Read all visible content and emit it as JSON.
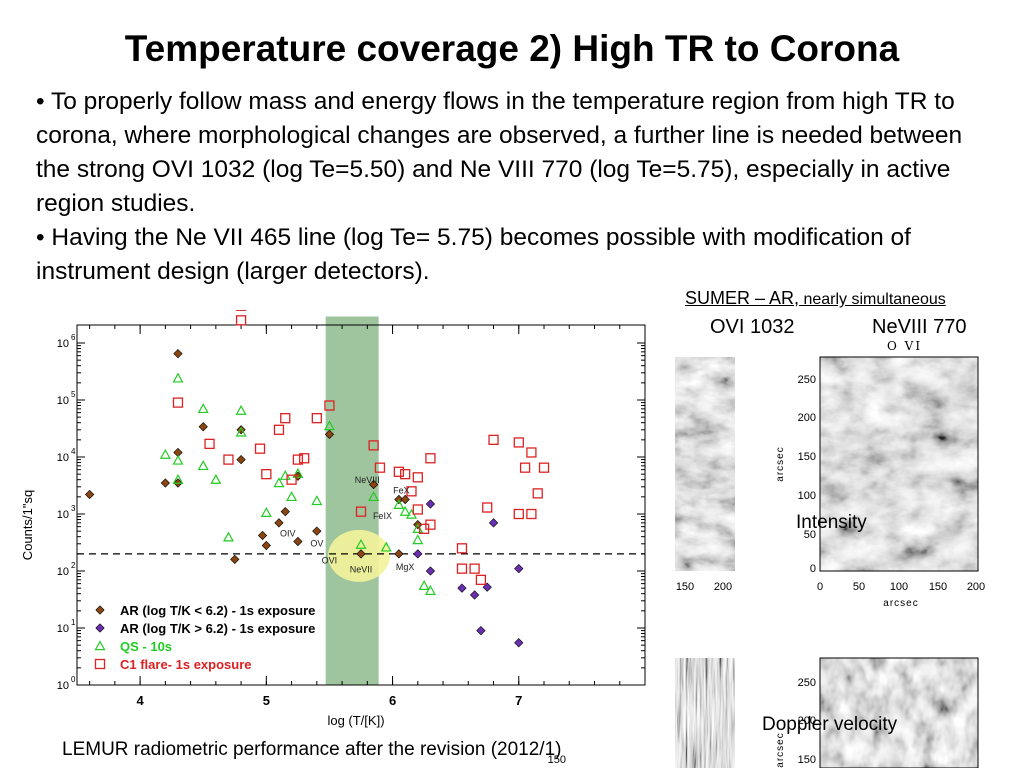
{
  "slide": {
    "title": "Temperature coverage 2) High TR to Corona",
    "bullets": [
      "• To properly follow mass and energy flows in the temperature region from high TR to corona, where morphological changes are observed, a further line is needed between the strong OVI 1032 (log Te=5.50) and Ne VIII 770 (log Te=5.75), especially in active region studies.",
      "• Having the Ne VII 465 line (log Te= 5.75) becomes possible with modification of instrument design (larger detectors)."
    ],
    "footer": "LEMUR radiometric performance after the revision (2012/1)"
  },
  "sumer": {
    "caption_main": "SUMER – AR,",
    "caption_small": " nearly simultaneous",
    "col1": "OVI 1032",
    "col2": "NeVIII 770",
    "image_title": "O VI",
    "intensity_label": "Intensity",
    "doppler_label": "Doppler velocity",
    "yaxis_label": "arcsec",
    "xaxis_label": "arcsec",
    "top_right_yticks": [
      "250",
      "200",
      "150",
      "100",
      "50",
      "0"
    ],
    "top_right_xticks": [
      "0",
      "50",
      "100",
      "150",
      "200"
    ],
    "top_left_xticks": [
      "150",
      "200"
    ],
    "bottom_right_yticks": [
      "250",
      "200",
      "150"
    ],
    "bottom_left_ytick": "150"
  },
  "chart_data": {
    "type": "scatter",
    "xlabel": "log (T/[K])",
    "ylabel": "Counts/1\"sq",
    "xlim": [
      3.5,
      8.0
    ],
    "ylim_log10": [
      0,
      6
    ],
    "xticks": [
      "4",
      "5",
      "6",
      "7"
    ],
    "yticks": [
      "10^0",
      "10^1",
      "10^2",
      "10^3",
      "10^4",
      "10^5",
      "10^6"
    ],
    "threshold": 200,
    "highlight_band": [
      5.47,
      5.89
    ],
    "highlight_marker": {
      "x": 5.75,
      "y": 200
    },
    "legend": [
      {
        "label": "AR (log T/K < 6.2) - 1s exposure",
        "marker": "diamond",
        "color": "#8B4513"
      },
      {
        "label": "AR (log T/K > 6.2) - 1s exposure",
        "marker": "diamond",
        "color": "#6a2fb0"
      },
      {
        "label": "QS - 10s",
        "marker": "triangle",
        "color": "#22cc22"
      },
      {
        "label": "C1 flare- 1s exposure",
        "marker": "square",
        "color": "#dd2222"
      }
    ],
    "annotations": [
      {
        "text": "OVI",
        "x": 5.5,
        "y": 135
      },
      {
        "text": "NeVIII",
        "x": 5.8,
        "y": 3500
      },
      {
        "text": "FeX",
        "x": 6.07,
        "y": 2300
      },
      {
        "text": "FeIX",
        "x": 5.92,
        "y": 820
      },
      {
        "text": "OIV",
        "x": 5.17,
        "y": 400
      },
      {
        "text": "OV",
        "x": 5.4,
        "y": 270
      },
      {
        "text": "NeVII",
        "x": 5.75,
        "y": 95
      },
      {
        "text": "MgX",
        "x": 6.1,
        "y": 105
      }
    ],
    "series": [
      {
        "name": "AR (log T/K < 6.2) - 1s exposure",
        "marker": "diamond",
        "color": "#8B4513",
        "points": [
          [
            3.6,
            2200
          ],
          [
            4.2,
            3500
          ],
          [
            4.3,
            650000
          ],
          [
            4.3,
            12000
          ],
          [
            4.3,
            3500
          ],
          [
            4.5,
            34000
          ],
          [
            4.75,
            160
          ],
          [
            4.8,
            30000
          ],
          [
            4.8,
            9000
          ],
          [
            4.97,
            420
          ],
          [
            5.0,
            280
          ],
          [
            5.1,
            700
          ],
          [
            5.15,
            1100
          ],
          [
            5.25,
            330
          ],
          [
            5.25,
            4600
          ],
          [
            5.4,
            500
          ],
          [
            5.5,
            25000
          ],
          [
            5.75,
            200
          ],
          [
            5.85,
            3300
          ],
          [
            6.05,
            1800
          ],
          [
            6.1,
            1800
          ],
          [
            6.05,
            200
          ],
          [
            6.2,
            650
          ]
        ]
      },
      {
        "name": "AR (log T/K > 6.2) - 1s exposure",
        "marker": "diamond",
        "color": "#6a2fb0",
        "points": [
          [
            6.2,
            200
          ],
          [
            6.3,
            1500
          ],
          [
            6.3,
            100
          ],
          [
            6.55,
            50
          ],
          [
            6.65,
            38
          ],
          [
            6.75,
            52
          ],
          [
            6.7,
            9
          ],
          [
            6.8,
            700
          ],
          [
            7.0,
            110
          ],
          [
            7.0,
            5.5
          ]
        ]
      },
      {
        "name": "QS - 10s",
        "marker": "triangle",
        "color": "#22cc22",
        "points": [
          [
            4.2,
            11000
          ],
          [
            4.3,
            240000
          ],
          [
            4.3,
            8700
          ],
          [
            4.3,
            4000
          ],
          [
            4.5,
            7000
          ],
          [
            4.5,
            70000
          ],
          [
            4.6,
            4000
          ],
          [
            4.7,
            390
          ],
          [
            4.8,
            27000
          ],
          [
            4.8,
            65000
          ],
          [
            5.0,
            1050
          ],
          [
            5.1,
            3500
          ],
          [
            5.15,
            4700
          ],
          [
            5.2,
            2000
          ],
          [
            5.25,
            5100
          ],
          [
            5.4,
            1700
          ],
          [
            5.5,
            35000
          ],
          [
            5.75,
            290
          ],
          [
            5.85,
            2000
          ],
          [
            5.95,
            260
          ],
          [
            6.05,
            1450
          ],
          [
            6.1,
            1100
          ],
          [
            6.15,
            980
          ],
          [
            6.2,
            350
          ],
          [
            6.2,
            550
          ],
          [
            6.25,
            55
          ],
          [
            6.3,
            45
          ]
        ]
      },
      {
        "name": "C1 flare- 1s exposure",
        "marker": "square",
        "color": "#dd2222",
        "points": [
          [
            4.5,
            7000000
          ],
          [
            4.3,
            90000
          ],
          [
            4.55,
            17000
          ],
          [
            4.8,
            4500000
          ],
          [
            4.8,
            2500000
          ],
          [
            4.7,
            9000
          ],
          [
            4.95,
            14000
          ],
          [
            5.0,
            5000
          ],
          [
            5.1,
            30000
          ],
          [
            5.15,
            48000
          ],
          [
            5.2,
            4000
          ],
          [
            5.25,
            9000
          ],
          [
            5.3,
            9500
          ],
          [
            5.4,
            48000
          ],
          [
            5.5,
            80000
          ],
          [
            5.75,
            1100
          ],
          [
            5.85,
            16000
          ],
          [
            5.9,
            6500
          ],
          [
            6.05,
            5500
          ],
          [
            6.1,
            5000
          ],
          [
            6.2,
            4400
          ],
          [
            6.15,
            2500
          ],
          [
            6.2,
            1200
          ],
          [
            6.25,
            550
          ],
          [
            6.3,
            650
          ],
          [
            6.3,
            9500
          ],
          [
            6.55,
            250
          ],
          [
            6.65,
            110
          ],
          [
            6.7,
            70
          ],
          [
            6.55,
            110
          ],
          [
            6.75,
            1300
          ],
          [
            6.8,
            20000
          ],
          [
            7.0,
            18000
          ],
          [
            7.05,
            6500
          ],
          [
            7.1,
            12000
          ],
          [
            7.15,
            2300
          ],
          [
            7.2,
            6500
          ],
          [
            7.0,
            1000
          ],
          [
            7.1,
            1000
          ]
        ]
      }
    ]
  }
}
